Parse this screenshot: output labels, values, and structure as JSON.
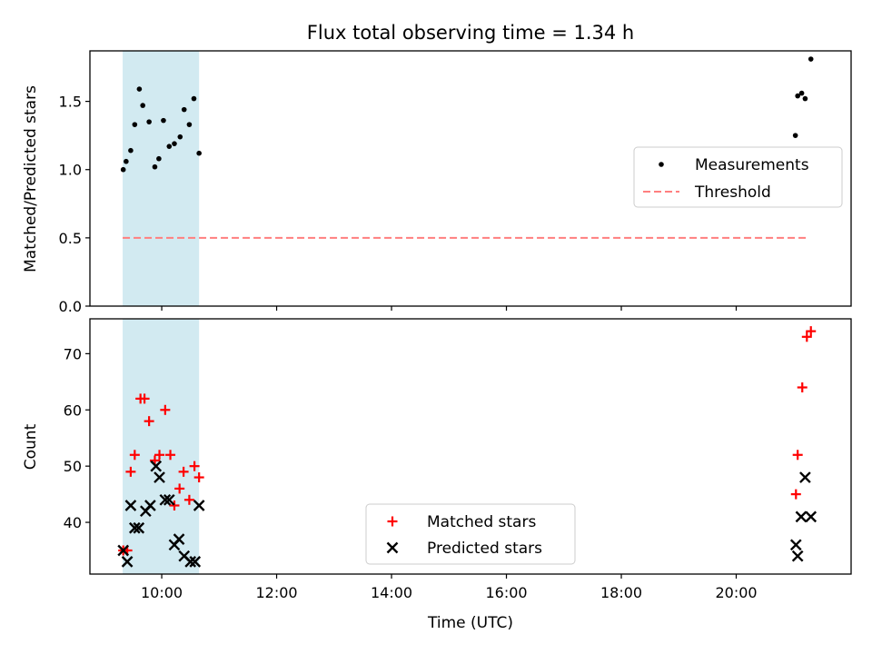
{
  "chart_data": {
    "title": "Flux total observing time = 1.34 h",
    "xlabel": "Time (UTC)",
    "xlim": [
      8.75,
      22.0
    ],
    "x_ticks": [
      {
        "value": 10,
        "label": "10:00"
      },
      {
        "value": 12,
        "label": "12:00"
      },
      {
        "value": 14,
        "label": "14:00"
      },
      {
        "value": 16,
        "label": "16:00"
      },
      {
        "value": 18,
        "label": "18:00"
      },
      {
        "value": 20,
        "label": "20:00"
      }
    ],
    "shaded_span": {
      "x_start": 9.32,
      "x_end": 10.65,
      "color": "#add8e6"
    },
    "panels": [
      {
        "type": "scatter",
        "ylabel": "Matched/Predicted stars",
        "ylim": [
          0,
          1.87
        ],
        "y_ticks": [
          {
            "value": 0,
            "label": "0.0"
          },
          {
            "value": 0.5,
            "label": "0.5"
          },
          {
            "value": 1.0,
            "label": "1.0"
          },
          {
            "value": 1.5,
            "label": "1.5"
          }
        ],
        "series": [
          {
            "name": "Measurements",
            "marker": "dot",
            "color": "#000000",
            "points": [
              [
                9.33,
                1.0
              ],
              [
                9.38,
                1.06
              ],
              [
                9.46,
                1.14
              ],
              [
                9.53,
                1.33
              ],
              [
                9.61,
                1.59
              ],
              [
                9.67,
                1.47
              ],
              [
                9.78,
                1.35
              ],
              [
                9.88,
                1.02
              ],
              [
                9.95,
                1.08
              ],
              [
                10.03,
                1.36
              ],
              [
                10.13,
                1.17
              ],
              [
                10.22,
                1.19
              ],
              [
                10.32,
                1.24
              ],
              [
                10.39,
                1.44
              ],
              [
                10.48,
                1.33
              ],
              [
                10.56,
                1.52
              ],
              [
                10.65,
                1.12
              ],
              [
                21.03,
                1.25
              ],
              [
                21.07,
                1.54
              ],
              [
                21.14,
                1.56
              ],
              [
                21.2,
                1.52
              ],
              [
                21.3,
                1.81
              ]
            ]
          },
          {
            "name": "Threshold",
            "style": "dashed",
            "color": "#ff7f7f",
            "x": [
              9.32,
              21.22
            ],
            "y": [
              0.5,
              0.5
            ]
          }
        ],
        "legend": {
          "position": "center-right",
          "entries": [
            "Measurements",
            "Threshold"
          ]
        }
      },
      {
        "type": "scatter",
        "ylabel": "Count",
        "ylim": [
          30.8,
          76.2
        ],
        "y_ticks": [
          {
            "value": 40,
            "label": "40"
          },
          {
            "value": 50,
            "label": "50"
          },
          {
            "value": 60,
            "label": "60"
          },
          {
            "value": 70,
            "label": "70"
          }
        ],
        "series": [
          {
            "name": "Matched stars",
            "marker": "plus",
            "color": "#ff0000",
            "points": [
              [
                9.33,
                35
              ],
              [
                9.4,
                35
              ],
              [
                9.46,
                49
              ],
              [
                9.53,
                52
              ],
              [
                9.63,
                62
              ],
              [
                9.7,
                62
              ],
              [
                9.78,
                58
              ],
              [
                9.88,
                51
              ],
              [
                9.96,
                52
              ],
              [
                10.06,
                60
              ],
              [
                10.15,
                52
              ],
              [
                10.22,
                43
              ],
              [
                10.31,
                46
              ],
              [
                10.38,
                49
              ],
              [
                10.48,
                44
              ],
              [
                10.57,
                50
              ],
              [
                10.65,
                48
              ],
              [
                21.04,
                45
              ],
              [
                21.07,
                52
              ],
              [
                21.15,
                64
              ],
              [
                21.23,
                73
              ],
              [
                21.3,
                74
              ]
            ]
          },
          {
            "name": "Predicted stars",
            "marker": "x",
            "color": "#000000",
            "points": [
              [
                9.33,
                35
              ],
              [
                9.4,
                33
              ],
              [
                9.46,
                43
              ],
              [
                9.53,
                39
              ],
              [
                9.6,
                39
              ],
              [
                9.72,
                42
              ],
              [
                9.8,
                43
              ],
              [
                9.9,
                50
              ],
              [
                9.96,
                48
              ],
              [
                10.06,
                44
              ],
              [
                10.13,
                44
              ],
              [
                10.22,
                36
              ],
              [
                10.3,
                37
              ],
              [
                10.39,
                34
              ],
              [
                10.5,
                33
              ],
              [
                10.58,
                33
              ],
              [
                10.65,
                43
              ],
              [
                21.04,
                36
              ],
              [
                21.07,
                34
              ],
              [
                21.13,
                41
              ],
              [
                21.2,
                48
              ],
              [
                21.3,
                41
              ]
            ]
          }
        ],
        "legend": {
          "position": "lower-center",
          "entries": [
            "Matched stars",
            "Predicted stars"
          ]
        }
      }
    ]
  }
}
